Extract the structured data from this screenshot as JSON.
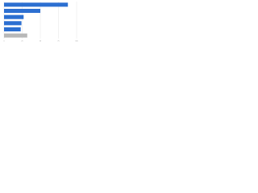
{
  "chart_data": {
    "type": "bar",
    "orientation": "horizontal",
    "categories": [
      null,
      null,
      null,
      null,
      null,
      null
    ],
    "values": [
      88,
      50,
      27,
      24,
      23,
      32
    ],
    "colors": [
      "#2c6fd1",
      "#2c6fd1",
      "#2c6fd1",
      "#2c6fd1",
      "#2c6fd1",
      "#b8b8b8"
    ],
    "xlim": [
      0,
      100
    ],
    "xticks": [
      0,
      25,
      50,
      75,
      100
    ],
    "grid": true
  }
}
